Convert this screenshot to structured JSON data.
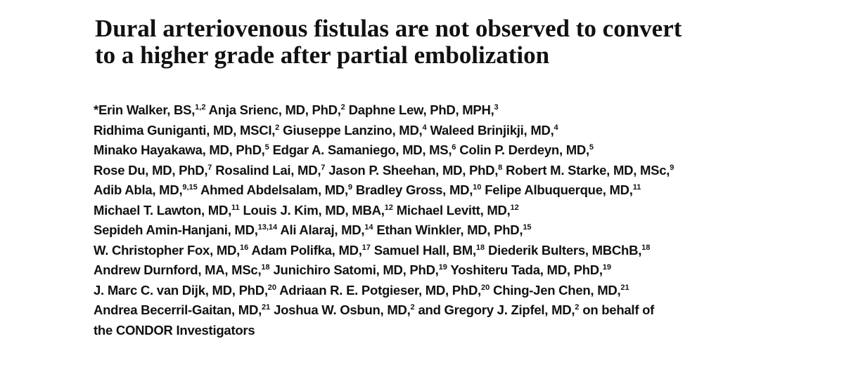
{
  "title": {
    "lines": [
      "Dural arteriovenous fistulas are not observed to convert",
      "to a higher grade after partial embolization"
    ]
  },
  "authors": {
    "lines": [
      [
        {
          "text": "*Erin Walker, BS,",
          "sup": "1,2"
        },
        {
          "text": " Anja Srienc, MD, PhD,",
          "sup": "2"
        },
        {
          "text": " Daphne Lew, PhD, MPH,",
          "sup": "3"
        }
      ],
      [
        {
          "text": "Ridhima Guniganti, MD, MSCI,",
          "sup": "2"
        },
        {
          "text": " Giuseppe Lanzino, MD,",
          "sup": "4"
        },
        {
          "text": " Waleed Brinjikji, MD,",
          "sup": "4"
        }
      ],
      [
        {
          "text": "Minako Hayakawa, MD, PhD,",
          "sup": "5"
        },
        {
          "text": " Edgar A. Samaniego, MD, MS,",
          "sup": "6"
        },
        {
          "text": " Colin P. Derdeyn, MD,",
          "sup": "5"
        }
      ],
      [
        {
          "text": "Rose Du, MD, PhD,",
          "sup": "7"
        },
        {
          "text": " Rosalind Lai, MD,",
          "sup": "7"
        },
        {
          "text": " Jason P. Sheehan, MD, PhD,",
          "sup": "8"
        },
        {
          "text": " Robert M. Starke, MD, MSc,",
          "sup": "9"
        }
      ],
      [
        {
          "text": "Adib Abla, MD,",
          "sup": "9,15"
        },
        {
          "text": " Ahmed Abdelsalam, MD,",
          "sup": "9"
        },
        {
          "text": " Bradley Gross, MD,",
          "sup": "10"
        },
        {
          "text": " Felipe Albuquerque, MD,",
          "sup": "11"
        }
      ],
      [
        {
          "text": "Michael T. Lawton, MD,",
          "sup": "11"
        },
        {
          "text": " Louis J. Kim, MD, MBA,",
          "sup": "12"
        },
        {
          "text": " Michael Levitt, MD,",
          "sup": "12"
        }
      ],
      [
        {
          "text": "Sepideh Amin-Hanjani, MD,",
          "sup": "13,14"
        },
        {
          "text": " Ali Alaraj, MD,",
          "sup": "14"
        },
        {
          "text": " Ethan Winkler, MD, PhD,",
          "sup": "15"
        }
      ],
      [
        {
          "text": "W. Christopher Fox, MD,",
          "sup": "16"
        },
        {
          "text": " Adam Polifka, MD,",
          "sup": "17"
        },
        {
          "text": " Samuel Hall, BM,",
          "sup": "18"
        },
        {
          "text": " Diederik Bulters, MBChB,",
          "sup": "18"
        }
      ],
      [
        {
          "text": "Andrew Durnford, MA, MSc,",
          "sup": "18"
        },
        {
          "text": " Junichiro Satomi, MD, PhD,",
          "sup": "19"
        },
        {
          "text": " Yoshiteru Tada, MD, PhD,",
          "sup": "19"
        }
      ],
      [
        {
          "text": "J. Marc C. van Dijk, MD, PhD,",
          "sup": "20"
        },
        {
          "text": " Adriaan R. E. Potgieser, MD, PhD,",
          "sup": "20"
        },
        {
          "text": " Ching-Jen Chen, MD,",
          "sup": "21"
        }
      ],
      [
        {
          "text": "Andrea Becerril-Gaitan, MD,",
          "sup": "21"
        },
        {
          "text": " Joshua W. Osbun, MD,",
          "sup": "2"
        },
        {
          "text": " and Gregory J. Zipfel, MD,",
          "sup": "2"
        },
        {
          "text": " on behalf of"
        }
      ],
      [
        {
          "text": "the CONDOR Investigators"
        }
      ]
    ]
  }
}
